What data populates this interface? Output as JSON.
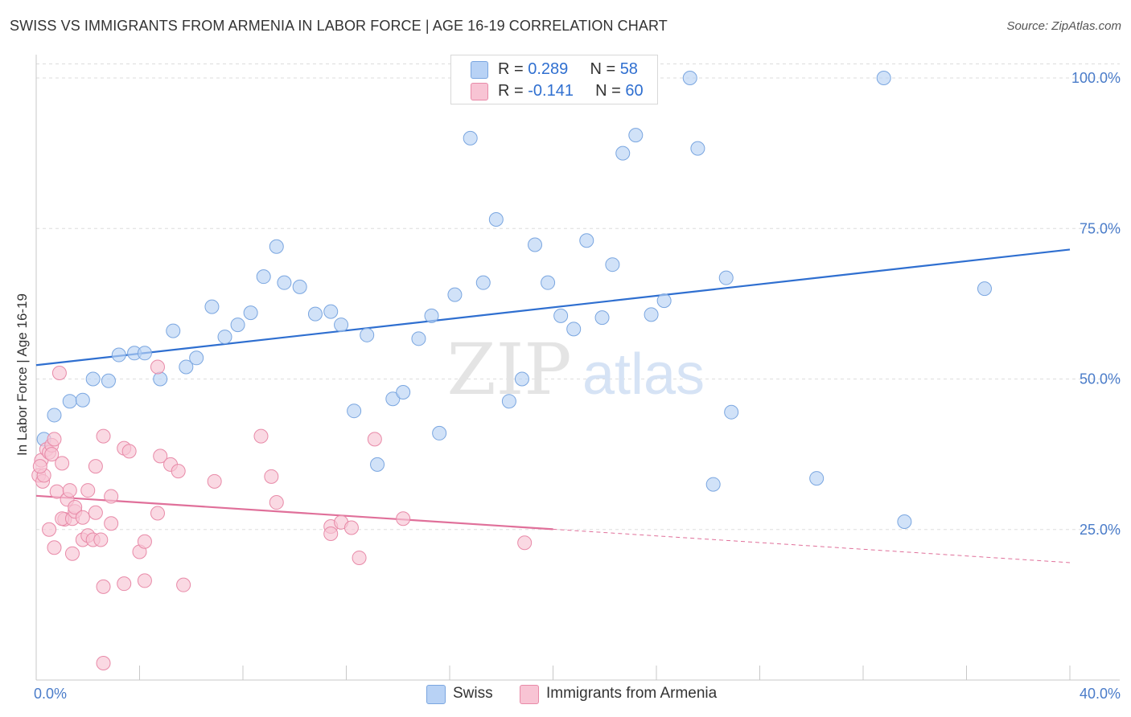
{
  "title": "SWISS VS IMMIGRANTS FROM ARMENIA IN LABOR FORCE | AGE 16-19 CORRELATION CHART",
  "source": "Source: ZipAtlas.com",
  "watermark": {
    "zip": "ZIP",
    "atlas": "atlas"
  },
  "colors": {
    "swiss_fill": "#b8d2f5",
    "swiss_stroke": "#7aa6e0",
    "swiss_line": "#2f6fd0",
    "armenia_fill": "#f8c4d4",
    "armenia_stroke": "#e88aa8",
    "armenia_line": "#e0709a",
    "axis_label": "#4a7cc9",
    "grid": "#dddddd"
  },
  "legend": {
    "swiss": {
      "r_label": "R = ",
      "r_value": "0.289",
      "n_label": "N = ",
      "n_value": "58"
    },
    "armenia": {
      "r_label": "R = ",
      "r_value": "-0.141",
      "n_label": "N = ",
      "n_value": "60"
    }
  },
  "bottom_legend": {
    "swiss": "Swiss",
    "armenia": "Immigrants from Armenia"
  },
  "chart_data": {
    "type": "scatter",
    "xlabel": "",
    "ylabel": "In Labor Force | Age 16-19",
    "xlim": [
      0,
      40
    ],
    "ylim": [
      0,
      102
    ],
    "x_tick_labels": [
      {
        "value": 0,
        "label": "0.0%"
      },
      {
        "value": 40,
        "label": "40.0%"
      }
    ],
    "x_minor_ticks": [
      4,
      8,
      12,
      16,
      20,
      24,
      28,
      32,
      36,
      40
    ],
    "y_ticks": [
      {
        "value": 25,
        "label": "25.0%"
      },
      {
        "value": 50,
        "label": "50.0%"
      },
      {
        "value": 75,
        "label": "75.0%"
      },
      {
        "value": 100,
        "label": "100.0%"
      }
    ],
    "series": [
      {
        "name": "Swiss",
        "trend": {
          "x0": 0,
          "y0": 52.3,
          "x1": 40,
          "y1": 71.5,
          "dashed_from": null
        },
        "points": [
          [
            0.3,
            40
          ],
          [
            0.7,
            44
          ],
          [
            1.3,
            46.3
          ],
          [
            1.8,
            46.5
          ],
          [
            2.2,
            50
          ],
          [
            2.8,
            49.7
          ],
          [
            3.2,
            54
          ],
          [
            3.8,
            54.3
          ],
          [
            4.2,
            54.3
          ],
          [
            4.8,
            50
          ],
          [
            5.3,
            58
          ],
          [
            5.8,
            52
          ],
          [
            6.2,
            53.5
          ],
          [
            6.8,
            62
          ],
          [
            7.3,
            57
          ],
          [
            7.8,
            59
          ],
          [
            8.3,
            61
          ],
          [
            8.8,
            67
          ],
          [
            9.3,
            72
          ],
          [
            9.6,
            66
          ],
          [
            10.2,
            65.3
          ],
          [
            10.8,
            60.8
          ],
          [
            11.4,
            61.2
          ],
          [
            11.8,
            59
          ],
          [
            12.3,
            44.7
          ],
          [
            12.8,
            57.3
          ],
          [
            13.2,
            35.8
          ],
          [
            13.8,
            46.7
          ],
          [
            14.2,
            47.8
          ],
          [
            14.8,
            56.7
          ],
          [
            15.3,
            60.5
          ],
          [
            15.6,
            41
          ],
          [
            16.2,
            64
          ],
          [
            16.8,
            90
          ],
          [
            17.3,
            66
          ],
          [
            17.8,
            76.5
          ],
          [
            18.3,
            46.3
          ],
          [
            18.8,
            50
          ],
          [
            19.3,
            72.3
          ],
          [
            19.8,
            66
          ],
          [
            20.3,
            60.5
          ],
          [
            20.8,
            58.3
          ],
          [
            21.3,
            73
          ],
          [
            21.9,
            60.2
          ],
          [
            22.3,
            69
          ],
          [
            22.7,
            87.5
          ],
          [
            23.2,
            90.5
          ],
          [
            23.8,
            60.7
          ],
          [
            24.3,
            63
          ],
          [
            25.3,
            100
          ],
          [
            25.6,
            88.3
          ],
          [
            26.2,
            32.5
          ],
          [
            26.7,
            66.8
          ],
          [
            26.9,
            44.5
          ],
          [
            30.2,
            33.5
          ],
          [
            32.8,
            100
          ],
          [
            33.6,
            26.3
          ],
          [
            36.7,
            65
          ]
        ]
      },
      {
        "name": "Immigrants from Armenia",
        "trend": {
          "x0": 0,
          "y0": 30.6,
          "x1": 40,
          "y1": 19.5,
          "dashed_from": 20
        },
        "points": [
          [
            0.1,
            34
          ],
          [
            0.2,
            36.5
          ],
          [
            0.25,
            33
          ],
          [
            0.3,
            34
          ],
          [
            0.4,
            38.3
          ],
          [
            0.5,
            37.8
          ],
          [
            0.6,
            39
          ],
          [
            0.6,
            37.5
          ],
          [
            0.7,
            40
          ],
          [
            0.5,
            25
          ],
          [
            0.7,
            22
          ],
          [
            0.8,
            31.3
          ],
          [
            0.9,
            51
          ],
          [
            1.0,
            36
          ],
          [
            1.1,
            26.7
          ],
          [
            1.0,
            26.8
          ],
          [
            1.2,
            30
          ],
          [
            1.3,
            31.5
          ],
          [
            1.4,
            21
          ],
          [
            1.4,
            26.8
          ],
          [
            1.5,
            28
          ],
          [
            1.5,
            28.7
          ],
          [
            1.8,
            27
          ],
          [
            1.8,
            23.3
          ],
          [
            2.0,
            24
          ],
          [
            2.0,
            31.5
          ],
          [
            2.2,
            23.3
          ],
          [
            2.3,
            27.8
          ],
          [
            2.3,
            35.5
          ],
          [
            2.5,
            23.3
          ],
          [
            2.6,
            15.5
          ],
          [
            2.6,
            40.5
          ],
          [
            2.9,
            26
          ],
          [
            2.9,
            30.5
          ],
          [
            2.6,
            2.8
          ],
          [
            3.4,
            16
          ],
          [
            3.4,
            38.5
          ],
          [
            3.6,
            38
          ],
          [
            4.0,
            21.3
          ],
          [
            4.2,
            23
          ],
          [
            4.2,
            16.5
          ],
          [
            4.7,
            52
          ],
          [
            4.7,
            27.7
          ],
          [
            4.8,
            37.2
          ],
          [
            5.2,
            35.8
          ],
          [
            5.5,
            34.7
          ],
          [
            5.7,
            15.8
          ],
          [
            6.9,
            33
          ],
          [
            8.7,
            40.5
          ],
          [
            9.1,
            33.8
          ],
          [
            9.3,
            29.5
          ],
          [
            11.4,
            25.5
          ],
          [
            11.4,
            24.3
          ],
          [
            11.8,
            26.2
          ],
          [
            12.2,
            25.3
          ],
          [
            12.5,
            20.3
          ],
          [
            13.1,
            40
          ],
          [
            14.2,
            26.8
          ],
          [
            18.9,
            22.8
          ],
          [
            0.15,
            35.5
          ]
        ]
      }
    ]
  }
}
